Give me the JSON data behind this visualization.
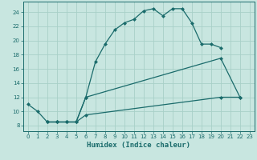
{
  "xlabel": "Humidex (Indice chaleur)",
  "background_color": "#c8e6e0",
  "grid_color": "#a8d0c8",
  "line_color": "#1a6b6b",
  "xlim": [
    -0.5,
    23.5
  ],
  "ylim": [
    7.2,
    25.5
  ],
  "xticks": [
    0,
    1,
    2,
    3,
    4,
    5,
    6,
    7,
    8,
    9,
    10,
    11,
    12,
    13,
    14,
    15,
    16,
    17,
    18,
    19,
    20,
    21,
    22,
    23
  ],
  "yticks": [
    8,
    10,
    12,
    14,
    16,
    18,
    20,
    22,
    24
  ],
  "line1_x": [
    0,
    1,
    2,
    3,
    4,
    5,
    6,
    7,
    8,
    9,
    10,
    11,
    12,
    13,
    14,
    15,
    16,
    17,
    18,
    19,
    20
  ],
  "line1_y": [
    11,
    10,
    8.5,
    8.5,
    8.5,
    8.5,
    12,
    17,
    19.5,
    21.5,
    22.5,
    23,
    24.2,
    24.5,
    23.5,
    24.5,
    24.5,
    22.5,
    19.5,
    19.5,
    19.0
  ],
  "line2_x": [
    2,
    3,
    4,
    5,
    6,
    20,
    22
  ],
  "line2_y": [
    8.5,
    8.5,
    8.5,
    8.5,
    12,
    17.5,
    12
  ],
  "line3_x": [
    2,
    3,
    4,
    5,
    6,
    20,
    22
  ],
  "line3_y": [
    8.5,
    8.5,
    8.5,
    8.5,
    9.5,
    12.0,
    12
  ],
  "markersize": 2.5,
  "linewidth": 0.9
}
